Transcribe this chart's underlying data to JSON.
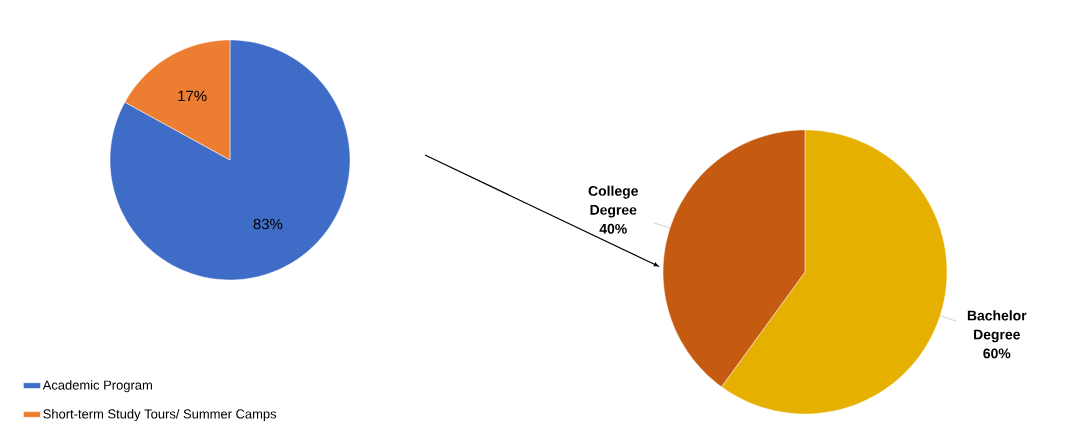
{
  "chart_data": [
    {
      "type": "pie",
      "categories": [
        "Academic Program",
        "Short-term Study Tours/ Summer Camps"
      ],
      "values": [
        83,
        17
      ],
      "colors": [
        "#3f6cc6",
        "#ed7d31"
      ],
      "value_labels": [
        "83%",
        "17%"
      ],
      "legend": "bottom left"
    },
    {
      "type": "pie",
      "categories": [
        "Bachelor Degree",
        "College Degree"
      ],
      "values": [
        60,
        40
      ],
      "colors": [
        "#e5b000",
        "#c55a11"
      ],
      "value_labels": [
        "60%",
        "40%"
      ]
    }
  ]
}
